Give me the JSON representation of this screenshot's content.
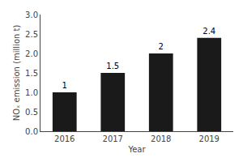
{
  "chart_data": {
    "type": "bar",
    "categories": [
      "2016",
      "2017",
      "2018",
      "2019"
    ],
    "values": [
      1.0,
      1.5,
      2.0,
      2.4
    ],
    "color": "#1a1a1a",
    "xlabel": "Year",
    "ylabel": "NOₓ emission (million t)",
    "ylim": [
      0,
      3.0
    ],
    "yticks": [
      {
        "value": 0,
        "label": "0.0"
      },
      0.5,
      {
        "value": 1.0,
        "label": "1.0"
      },
      1.5,
      {
        "value": 2.0,
        "label": "2.0"
      },
      2.5,
      {
        "value": 3.0,
        "label": "3.0"
      }
    ],
    "data_labels": true,
    "grid": false
  }
}
